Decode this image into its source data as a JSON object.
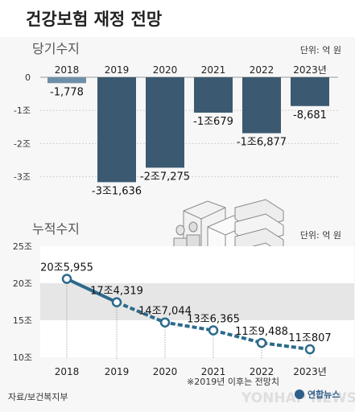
{
  "title": "건강보험 재정 전망",
  "source": "자료/보건복지부",
  "footnote": "※2019년 이후는 전망치",
  "brand": "연합뉴스",
  "watermark": "YONHAP NEWS",
  "colors": {
    "bar": "#3b5a71",
    "bar_first": "#6f8fa8",
    "line": "#2c6a8c",
    "band": "#e6e6e6",
    "title_dark": "#222222"
  },
  "chart_data": [
    {
      "type": "bar",
      "title": "당기수지",
      "unit": "단위: 억 원",
      "categories": [
        "2018",
        "2019",
        "2020",
        "2021",
        "2022",
        "2023년"
      ],
      "values": [
        -1778,
        -31636,
        -27275,
        -10679,
        -16877,
        -8681
      ],
      "value_labels": [
        "-1,778",
        "-3조1,636",
        "-2조7,275",
        "-1조679",
        "-1조6,877",
        "-8,681"
      ],
      "y_ticks": [
        {
          "value": 0,
          "label": "0"
        },
        {
          "value": -10000,
          "label": "-1조"
        },
        {
          "value": -20000,
          "label": "-2조"
        },
        {
          "value": -30000,
          "label": "-3조"
        }
      ],
      "ylim": [
        -33000,
        0
      ]
    },
    {
      "type": "line",
      "title": "누적수지",
      "unit": "단위: 억 원",
      "categories": [
        "2018",
        "2019",
        "2020",
        "2021",
        "2022",
        "2023년"
      ],
      "values": [
        205955,
        174319,
        147044,
        136365,
        119488,
        110807
      ],
      "value_labels": [
        "20조5,955",
        "17조4,319",
        "14조7,044",
        "13조6,365",
        "11조9,488",
        "11조807"
      ],
      "y_ticks": [
        {
          "value": 100000,
          "label": "10조"
        },
        {
          "value": 150000,
          "label": "15조"
        },
        {
          "value": 200000,
          "label": "20조"
        },
        {
          "value": 250000,
          "label": "25조"
        }
      ],
      "ylim": [
        100000,
        250000
      ],
      "projected_from": "2019"
    }
  ]
}
